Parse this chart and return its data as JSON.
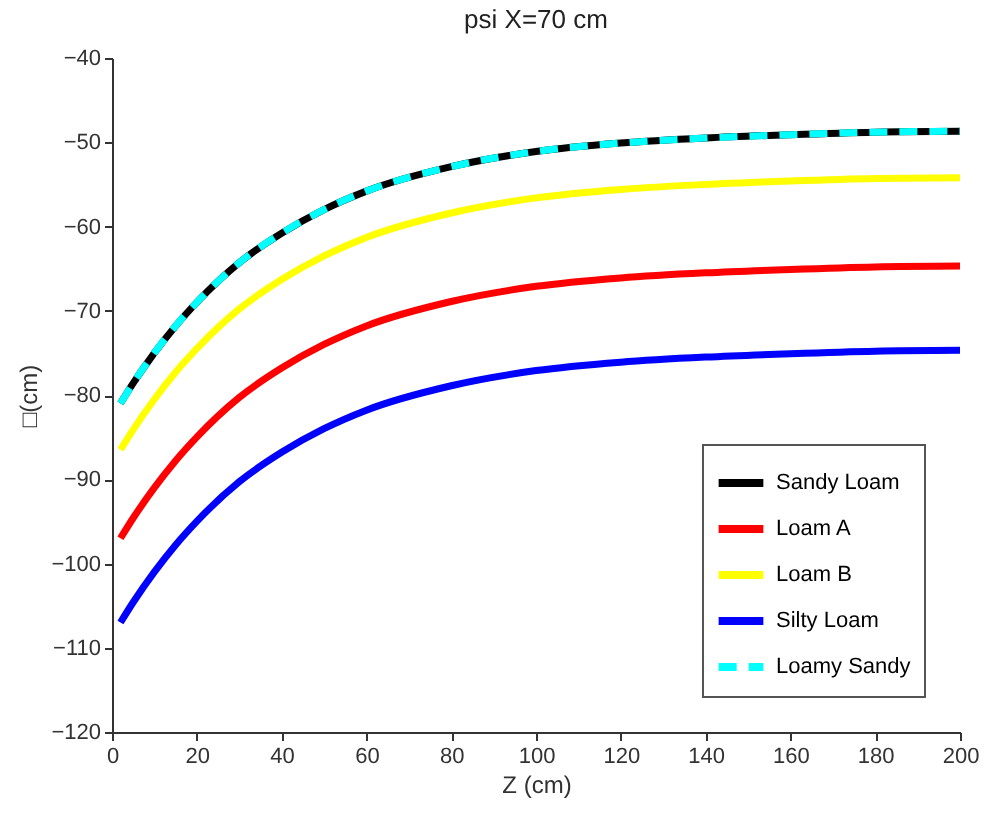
{
  "chart_data": {
    "type": "line",
    "title": "psi X=70 cm",
    "xlabel": "Z (cm)",
    "ylabel": "□(cm)",
    "x": [
      2,
      5,
      10,
      15,
      20,
      30,
      40,
      50,
      60,
      80,
      100,
      120,
      140,
      160,
      180,
      200
    ],
    "xlim": [
      0,
      200
    ],
    "xticks": [
      0,
      20,
      40,
      60,
      80,
      100,
      120,
      140,
      160,
      180,
      200
    ],
    "ylim": [
      -120,
      -40
    ],
    "yticks": [
      -120,
      -110,
      -100,
      -90,
      -80,
      -70,
      -60,
      -50,
      -40
    ],
    "grid": false,
    "legend": "bottom right",
    "marker": "none",
    "series": [
      {
        "name": "Sandy Loam",
        "color": "#000000",
        "line_style": "solid",
        "values": [
          -81.0,
          -78.6,
          -75.0,
          -71.8,
          -69.0,
          -64.3,
          -60.8,
          -58.0,
          -55.8,
          -52.9,
          -51.1,
          -50.1,
          -49.5,
          -49.1,
          -48.8,
          -48.7
        ]
      },
      {
        "name": "Loam A",
        "color": "#ff0000",
        "line_style": "solid",
        "values": [
          -97.0,
          -94.6,
          -91.0,
          -87.8,
          -85.0,
          -80.3,
          -76.8,
          -74.0,
          -71.8,
          -68.9,
          -67.1,
          -66.1,
          -65.5,
          -65.1,
          -64.8,
          -64.7
        ]
      },
      {
        "name": "Loam B",
        "color": "#ffff00",
        "line_style": "solid",
        "values": [
          -86.5,
          -84.1,
          -80.5,
          -77.3,
          -74.5,
          -69.8,
          -66.3,
          -63.5,
          -61.3,
          -58.4,
          -56.6,
          -55.6,
          -55.0,
          -54.6,
          -54.3,
          -54.2
        ]
      },
      {
        "name": "Silty Loam",
        "color": "#0000ff",
        "line_style": "solid",
        "values": [
          -107.0,
          -104.6,
          -101.0,
          -97.8,
          -95.0,
          -90.3,
          -86.8,
          -84.0,
          -81.8,
          -78.9,
          -77.1,
          -76.1,
          -75.5,
          -75.1,
          -74.8,
          -74.7
        ]
      },
      {
        "name": "Loamy Sandy",
        "color": "#00ffff",
        "line_style": "dashed",
        "values": [
          -81.0,
          -78.6,
          -75.0,
          -71.8,
          -69.0,
          -64.3,
          -60.8,
          -58.0,
          -55.8,
          -52.9,
          -51.1,
          -50.1,
          -49.5,
          -49.1,
          -48.8,
          -48.7
        ]
      }
    ]
  }
}
